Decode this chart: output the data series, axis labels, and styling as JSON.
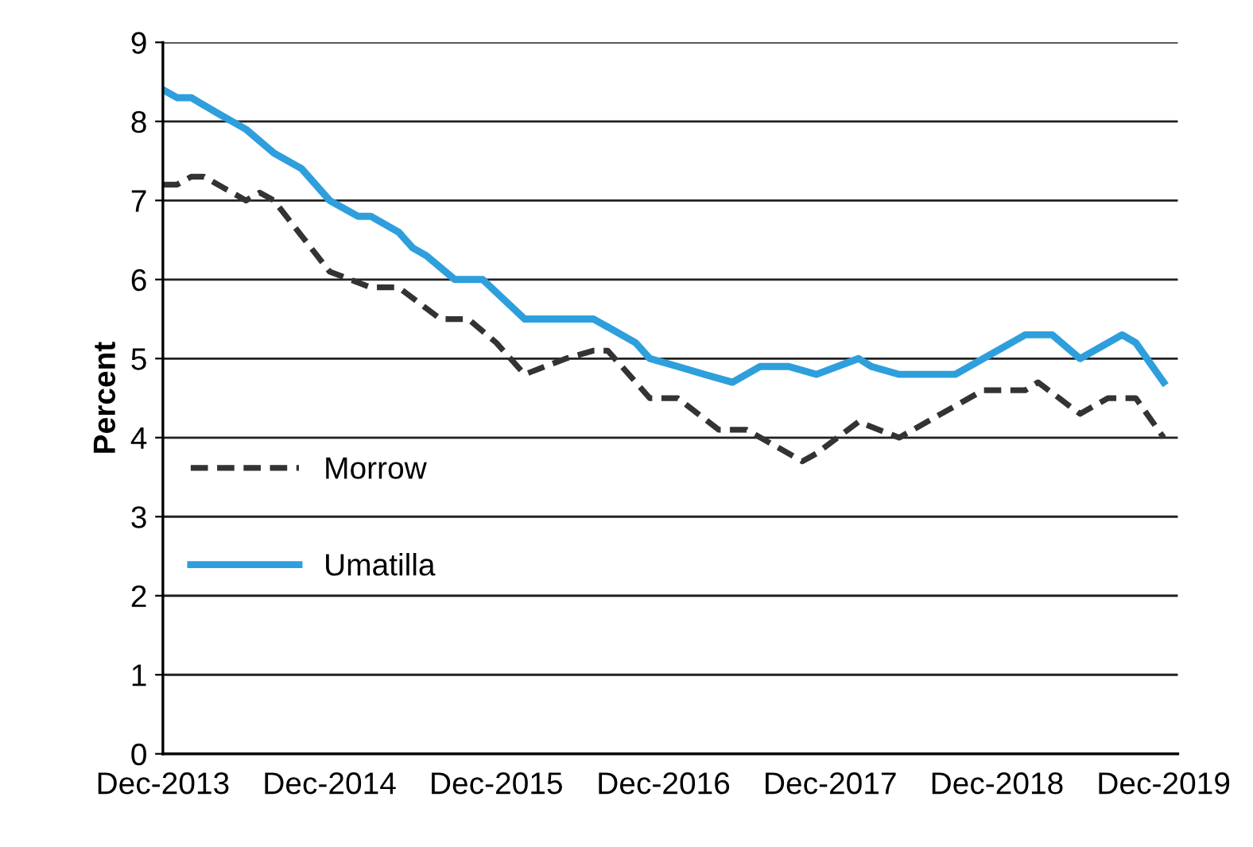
{
  "chart_data": {
    "type": "line",
    "ylabel": "Percent",
    "series": [
      {
        "name": "Morrow",
        "color": "#333333",
        "line_style": "dashed",
        "x": [
          "2013-12",
          "2014-01",
          "2014-02",
          "2014-03",
          "2014-06",
          "2014-07",
          "2014-08",
          "2014-12",
          "2015-03",
          "2015-05",
          "2015-08",
          "2015-10",
          "2015-12",
          "2016-02",
          "2016-05",
          "2016-07",
          "2016-08",
          "2016-11",
          "2017-01",
          "2017-04",
          "2017-06",
          "2017-10",
          "2017-11",
          "2018-02",
          "2018-05",
          "2018-07",
          "2018-11",
          "2019-02",
          "2019-03",
          "2019-06",
          "2019-08",
          "2019-10",
          "2019-12"
        ],
        "values": [
          7.2,
          7.2,
          7.3,
          7.3,
          7.0,
          7.1,
          7.0,
          6.1,
          5.9,
          5.9,
          5.5,
          5.5,
          5.2,
          4.8,
          5.0,
          5.1,
          5.1,
          4.5,
          4.5,
          4.1,
          4.1,
          3.7,
          3.8,
          4.2,
          4.0,
          4.2,
          4.6,
          4.6,
          4.7,
          4.3,
          4.5,
          4.5,
          4.0
        ]
      },
      {
        "name": "Umatilla",
        "color": "#2e9fdc",
        "line_style": "solid",
        "x": [
          "2013-12",
          "2014-01",
          "2014-02",
          "2014-04",
          "2014-06",
          "2014-08",
          "2014-10",
          "2014-12",
          "2015-02",
          "2015-03",
          "2015-05",
          "2015-06",
          "2015-07",
          "2015-09",
          "2015-11",
          "2016-02",
          "2016-07",
          "2016-10",
          "2016-11",
          "2017-01",
          "2017-03",
          "2017-05",
          "2017-07",
          "2017-09",
          "2017-11",
          "2018-02",
          "2018-03",
          "2018-05",
          "2018-09",
          "2019-02",
          "2019-04",
          "2019-06",
          "2019-09",
          "2019-10",
          "2019-12"
        ],
        "values": [
          8.4,
          8.3,
          8.3,
          8.1,
          7.9,
          7.6,
          7.4,
          7.0,
          6.8,
          6.8,
          6.6,
          6.4,
          6.3,
          6.0,
          6.0,
          5.5,
          5.5,
          5.2,
          5.0,
          4.9,
          4.8,
          4.7,
          4.9,
          4.9,
          4.8,
          5.0,
          4.9,
          4.8,
          4.8,
          5.3,
          5.3,
          5.0,
          5.3,
          5.2,
          4.7
        ]
      }
    ],
    "xlim": [
      "2013-12",
      "2020-01"
    ],
    "xticks": [
      {
        "value": "2013-12",
        "label": "Dec-2013"
      },
      {
        "value": "2014-12",
        "label": "Dec-2014"
      },
      {
        "value": "2015-12",
        "label": "Dec-2015"
      },
      {
        "value": "2016-12",
        "label": "Dec-2016"
      },
      {
        "value": "2017-12",
        "label": "Dec-2017"
      },
      {
        "value": "2018-12",
        "label": "Dec-2018"
      },
      {
        "value": "2019-12",
        "label": "Dec-2019"
      }
    ],
    "ylim": [
      0,
      9
    ],
    "yticks": [
      0,
      1,
      2,
      3,
      4,
      5,
      6,
      7,
      8,
      9
    ],
    "grid": "y",
    "legend": "left",
    "marker": "none"
  }
}
